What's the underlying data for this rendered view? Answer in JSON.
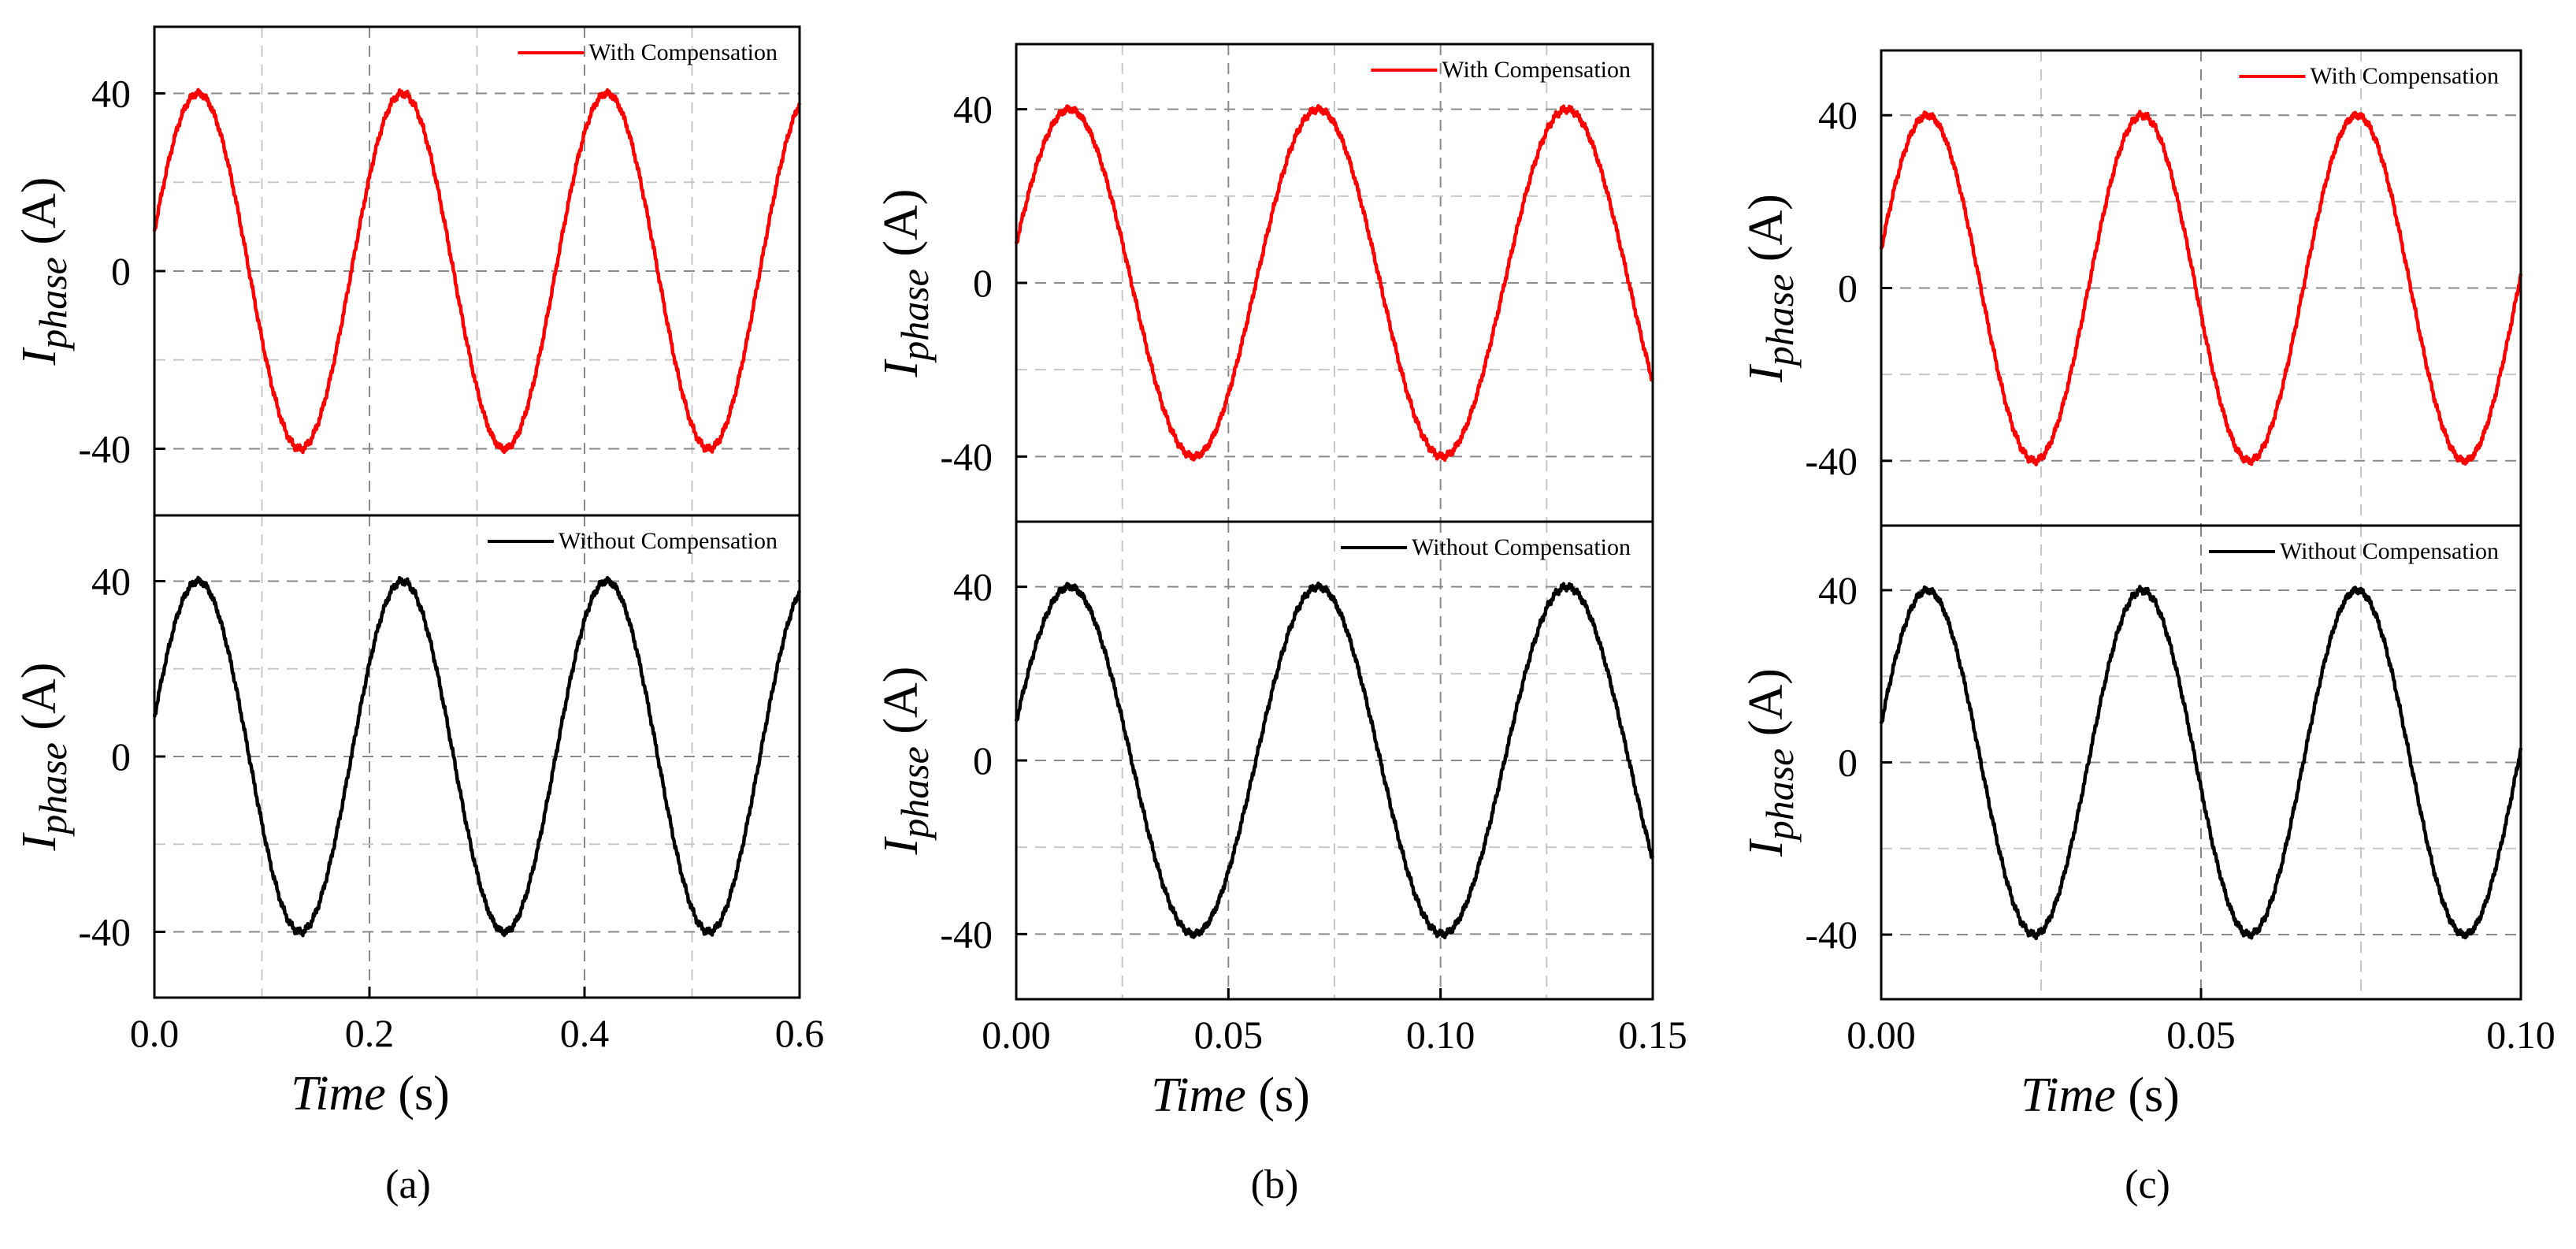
{
  "chart_data": [
    {
      "type": "line",
      "panel_label": "(a)",
      "xlabel_italic": "Time",
      "xlabel_unit": " (s)",
      "xlim": [
        0,
        0.6
      ],
      "xticks": [
        0.0,
        0.2,
        0.4,
        0.6
      ],
      "xtick_labels": [
        "0.0",
        "0.2",
        "0.4",
        "0.6"
      ],
      "x_minor_grid": [
        0.1,
        0.3,
        0.5
      ],
      "ylabel_symbol": "I",
      "ylabel_subscript": "phase",
      "ylabel_unit": " (A)",
      "ylim": [
        -55,
        55
      ],
      "yticks": [
        40,
        0,
        -40
      ],
      "ytick_labels": [
        "40",
        "0",
        "-40"
      ],
      "y_minor_grid": [
        20,
        -20
      ],
      "grid": true,
      "amplitude": 40,
      "period": 0.19,
      "subplots": [
        {
          "series_name": "With Compensation",
          "color": "#ff0000",
          "initial_value": 9,
          "legend_position": "top-right"
        },
        {
          "series_name": "Without Compensation",
          "color": "#000000",
          "initial_value": 9,
          "legend_position": "top-right"
        }
      ]
    },
    {
      "type": "line",
      "panel_label": "(b)",
      "xlabel_italic": "Time",
      "xlabel_unit": " (s)",
      "xlim": [
        0,
        0.15
      ],
      "xticks": [
        0.0,
        0.05,
        0.1,
        0.15
      ],
      "xtick_labels": [
        "0.00",
        "0.05",
        "0.10",
        "0.15"
      ],
      "x_minor_grid": [
        0.025,
        0.075,
        0.125
      ],
      "ylabel_symbol": "I",
      "ylabel_subscript": "phase",
      "ylabel_unit": " (A)",
      "ylim": [
        -55,
        55
      ],
      "yticks": [
        40,
        0,
        -40
      ],
      "ytick_labels": [
        "40",
        "0",
        "-40"
      ],
      "y_minor_grid": [
        20,
        -20
      ],
      "grid": true,
      "amplitude": 40,
      "period": 0.0586,
      "subplots": [
        {
          "series_name": "With Compensation",
          "color": "#ff0000",
          "initial_value": 9,
          "legend_position": "top-right"
        },
        {
          "series_name": "Without Compensation",
          "color": "#000000",
          "initial_value": 9,
          "legend_position": "top-right"
        }
      ]
    },
    {
      "type": "line",
      "panel_label": "(c)",
      "xlabel_italic": "Time",
      "xlabel_unit": " (s)",
      "xlim": [
        0,
        0.1
      ],
      "xticks": [
        0.0,
        0.05,
        0.1
      ],
      "xtick_labels": [
        "0.00",
        "0.05",
        "0.10"
      ],
      "x_minor_grid": [
        0.025,
        0.075
      ],
      "ylabel_symbol": "I",
      "ylabel_subscript": "phase",
      "ylabel_unit": " (A)",
      "ylim": [
        -55,
        55
      ],
      "yticks": [
        40,
        0,
        -40
      ],
      "ytick_labels": [
        "40",
        "0",
        "-40"
      ],
      "y_minor_grid": [
        20,
        -20
      ],
      "grid": true,
      "amplitude": 40,
      "period": 0.0336,
      "subplots": [
        {
          "series_name": "With Compensation",
          "color": "#ff0000",
          "initial_value": 9,
          "legend_position": "top-right"
        },
        {
          "series_name": "Without Compensation",
          "color": "#000000",
          "initial_value": 9,
          "legend_position": "top-right"
        }
      ]
    }
  ]
}
